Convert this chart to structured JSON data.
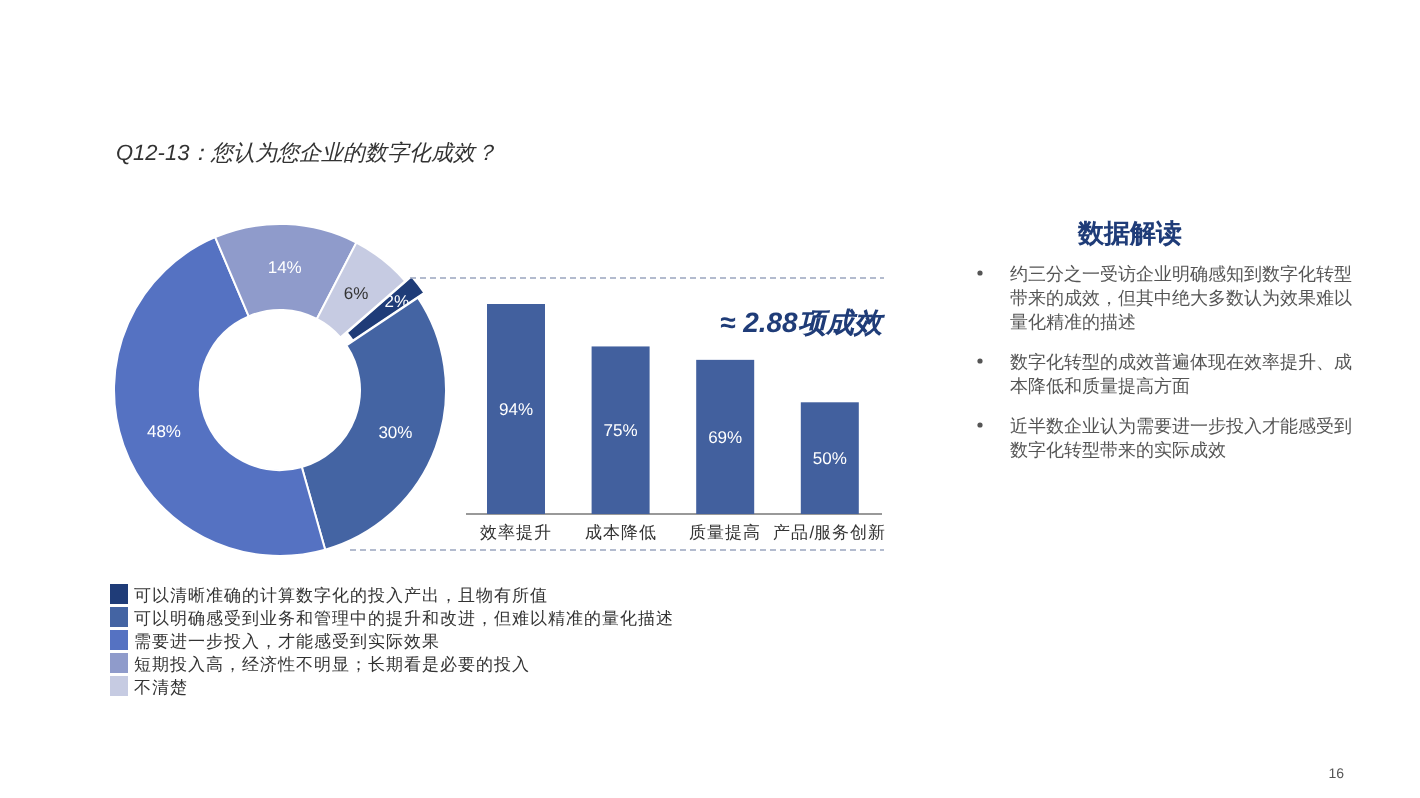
{
  "chart_data": [
    {
      "type": "donut",
      "title": "Q12-13：您认为您企业的数字化成效？",
      "categories": [
        "可以清晰准确的计算数字化的投入产出，且物有所值",
        "可以明确感受到业务和管理中的提升和改进，但难以精准的量化描述",
        "需要进一步投入，才能感受到实际效果",
        "短期投入高，经济性不明显；长期看是必要的投入",
        "不清楚"
      ],
      "values": [
        2,
        30,
        48,
        14,
        6
      ],
      "colors": [
        "#1f3c78",
        "#4464a3",
        "#5572c2",
        "#8f9bcb",
        "#c6cbe2"
      ],
      "value_labels": [
        "2%",
        "30%",
        "48%",
        "14%",
        "6%"
      ],
      "legend": "bottom"
    },
    {
      "type": "bar",
      "categories": [
        "效率提升",
        "成本降低",
        "质量提高",
        "产品/服务创新"
      ],
      "values": [
        94,
        75,
        69,
        50
      ],
      "color": "#42609e",
      "value_labels": [
        "94%",
        "75%",
        "69%",
        "50%"
      ],
      "annotations": [
        "≈ 2.88项成效"
      ]
    },
    {
      "type": "other",
      "title": "数据解读",
      "annotations": [
        "约三分之一受访企业明确感知到数字化转型带来的成效，但其中绝大多数认为效果难以量化精准的描述",
        "数字化转型的成效普遍体现在效率提升、成本降低和质量提高方面",
        "近半数企业认为需要进一步投入才能感受到数字化转型带来的实际成效",
        "16"
      ]
    }
  ]
}
